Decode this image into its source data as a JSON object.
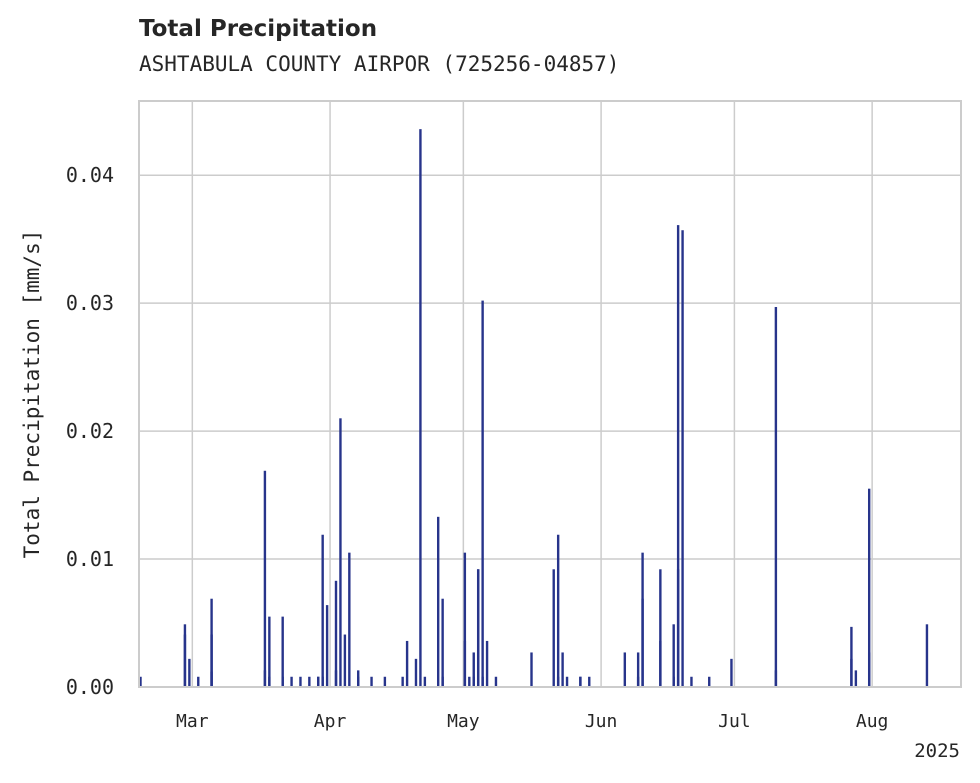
{
  "chart_data": {
    "type": "bar",
    "title": "Total Precipitation",
    "subtitle": "ASHTABULA COUNTY AIRPOR (725256-04857)",
    "ylabel": "Total Precipitation [mm/s]",
    "xlabel": "",
    "x_offset_label": "2025",
    "ylim": [
      0,
      0.0458
    ],
    "xlim": [
      "2025-02-17",
      "2025-08-21"
    ],
    "y_ticks": [
      0.0,
      0.01,
      0.02,
      0.03,
      0.04
    ],
    "y_tick_labels": [
      "0.00",
      "0.01",
      "0.02",
      "0.03",
      "0.04"
    ],
    "x_ticks": [
      "2025-03-01",
      "2025-04-01",
      "2025-05-01",
      "2025-06-01",
      "2025-07-01",
      "2025-08-01"
    ],
    "x_tick_labels": [
      "Mar",
      "Apr",
      "May",
      "Jun",
      "Jul",
      "Aug"
    ],
    "grid": true,
    "legend": false,
    "color": "#27348b",
    "series": [
      {
        "x": [
          "2025-02-17",
          "2025-02-27",
          "2025-02-27",
          "2025-02-28",
          "2025-03-02",
          "2025-03-05",
          "2025-03-05",
          "2025-03-05",
          "2025-03-17",
          "2025-03-17",
          "2025-03-18",
          "2025-03-18",
          "2025-03-21",
          "2025-03-21",
          "2025-03-23",
          "2025-03-25",
          "2025-03-27",
          "2025-03-29",
          "2025-03-29",
          "2025-03-30",
          "2025-03-30",
          "2025-03-31",
          "2025-04-02",
          "2025-04-02",
          "2025-04-03",
          "2025-04-04",
          "2025-04-05",
          "2025-04-07",
          "2025-04-07",
          "2025-04-10",
          "2025-04-13",
          "2025-04-17",
          "2025-04-18",
          "2025-04-20",
          "2025-04-21",
          "2025-04-22",
          "2025-04-25",
          "2025-04-26",
          "2025-04-26",
          "2025-05-01",
          "2025-05-01",
          "2025-05-02",
          "2025-05-03",
          "2025-05-03",
          "2025-05-04",
          "2025-05-04",
          "2025-05-05",
          "2025-05-05",
          "2025-05-06",
          "2025-05-08",
          "2025-05-16",
          "2025-05-21",
          "2025-05-22",
          "2025-05-22",
          "2025-05-23",
          "2025-05-24",
          "2025-05-27",
          "2025-05-27",
          "2025-05-29",
          "2025-06-06",
          "2025-06-09",
          "2025-06-09",
          "2025-06-10",
          "2025-06-10",
          "2025-06-14",
          "2025-06-14",
          "2025-06-17",
          "2025-06-17",
          "2025-06-18",
          "2025-06-18",
          "2025-06-19",
          "2025-06-21",
          "2025-06-25",
          "2025-06-30",
          "2025-07-10",
          "2025-07-10",
          "2025-07-27",
          "2025-07-27",
          "2025-07-28",
          "2025-07-31",
          "2025-07-31",
          "2025-08-13"
        ],
        "values": [
          0.0008,
          0.0049,
          0.0041,
          0.0022,
          0.0008,
          0.0069,
          0.0041,
          0.0012,
          0.0169,
          0.0013,
          0.0055,
          0.0008,
          0.0055,
          0.0008,
          0.0008,
          0.0008,
          0.0008,
          0.0008,
          0.0008,
          0.0119,
          0.0008,
          0.0064,
          0.0083,
          0.0013,
          0.021,
          0.0041,
          0.0105,
          0.0013,
          0.0008,
          0.0008,
          0.0008,
          0.0008,
          0.0036,
          0.0022,
          0.0436,
          0.0008,
          0.0133,
          0.0069,
          0.0008,
          0.0105,
          0.0036,
          0.0008,
          0.0027,
          0.0008,
          0.0092,
          0.0092,
          0.0302,
          0.0008,
          0.0036,
          0.0008,
          0.0027,
          0.0092,
          0.0119,
          0.0008,
          0.0027,
          0.0008,
          0.0008,
          0.0008,
          0.0008,
          0.0027,
          0.0027,
          0.0008,
          0.0105,
          0.0069,
          0.0092,
          0.0036,
          0.0049,
          0.0008,
          0.0361,
          0.0092,
          0.0357,
          0.0008,
          0.0008,
          0.0022,
          0.0297,
          0.0013,
          0.0022,
          0.0047,
          0.0013,
          0.0027,
          0.0155,
          0.0049
        ]
      }
    ]
  }
}
